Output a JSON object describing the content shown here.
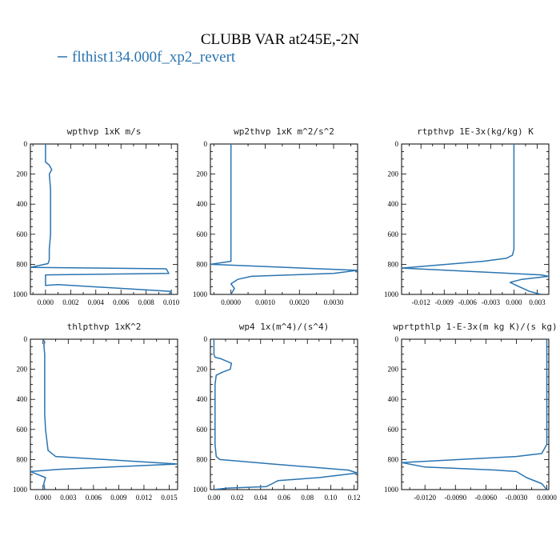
{
  "figure": {
    "title": "CLUBB VAR at245E,-2N",
    "legend_label": "flthist134.000f_xp2_revert",
    "line_color": "#2a74b0"
  },
  "chart_data": [
    {
      "type": "line",
      "title": "wpthvp   1xK m/s",
      "xlim": [
        -0.0012,
        0.0105
      ],
      "ylim": [
        0,
        1000
      ],
      "y_inverted": true,
      "xticks": [
        0.0,
        0.002,
        0.004,
        0.006,
        0.008,
        0.01
      ],
      "xtick_labels": [
        "0.000",
        "0.002",
        "0.004",
        "0.006",
        "0.008",
        "0.010"
      ],
      "yticks": [
        0,
        200,
        400,
        600,
        800,
        1000
      ],
      "ytick_labels": [
        "0",
        "200",
        "400",
        "600",
        "800",
        "1000"
      ],
      "series": [
        {
          "x": [
            0.0,
            0.0,
            0.0003,
            0.0005,
            0.0003,
            0.0004,
            0.0004,
            0.0004,
            0.0004,
            0.0003,
            0.0003,
            0.0002,
            -0.0012,
            0.0096,
            0.0098,
            0.0,
            0.0,
            0.001,
            0.01,
            0.0098
          ],
          "y": [
            0,
            120,
            140,
            170,
            200,
            300,
            400,
            500,
            600,
            700,
            770,
            795,
            820,
            830,
            860,
            870,
            940,
            935,
            980,
            1000
          ]
        }
      ]
    },
    {
      "type": "line",
      "title": "wp2thvp   1xK m^2/s^2",
      "xlim": [
        -0.0006,
        0.0037
      ],
      "ylim": [
        0,
        1000
      ],
      "y_inverted": true,
      "xticks": [
        0.0,
        0.001,
        0.002,
        0.003
      ],
      "xtick_labels": [
        "0.0000",
        "0.0010",
        "0.0020",
        "0.0030"
      ],
      "yticks": [
        0,
        200,
        400,
        600,
        800,
        1000
      ],
      "ytick_labels": [
        "0",
        "200",
        "400",
        "600",
        "800",
        "1000"
      ],
      "series": [
        {
          "x": [
            0.0,
            0.0,
            0.0,
            0.0,
            0.0,
            0.0,
            0.0,
            0.0,
            0.0,
            0.0,
            -0.0006,
            0.0037,
            0.003,
            0.0006,
            0.0002,
            0.0,
            0.0001,
            0.0
          ],
          "y": [
            0,
            100,
            150,
            200,
            300,
            400,
            500,
            600,
            700,
            780,
            800,
            840,
            860,
            880,
            900,
            930,
            960,
            1000
          ]
        }
      ]
    },
    {
      "type": "line",
      "title": "rtpthvp   1E-3x(kg/kg) K",
      "xlim": [
        -0.0145,
        0.0045
      ],
      "ylim": [
        0,
        1000
      ],
      "y_inverted": true,
      "xticks": [
        -0.012,
        -0.009,
        -0.006,
        -0.003,
        0.0,
        0.003
      ],
      "xtick_labels": [
        "-0.012",
        "-0.009",
        "-0.006",
        "-0.003",
        "0.000",
        "0.003"
      ],
      "yticks": [
        0,
        200,
        400,
        600,
        800,
        1000
      ],
      "ytick_labels": [
        "0",
        "200",
        "400",
        "600",
        "800",
        "1000"
      ],
      "series": [
        {
          "x": [
            0.0,
            0.0,
            0.0,
            0.0,
            0.0,
            0.0,
            0.0,
            0.0,
            -0.0002,
            -0.001,
            -0.004,
            -0.0145,
            0.0035,
            0.0045,
            0.001,
            -0.0005,
            0.0003,
            0.002,
            0.0035
          ],
          "y": [
            0,
            100,
            200,
            300,
            400,
            500,
            600,
            700,
            740,
            760,
            780,
            825,
            870,
            880,
            900,
            920,
            940,
            980,
            1000
          ]
        }
      ]
    },
    {
      "type": "line",
      "title": "thlpthvp   1xK^2",
      "xlim": [
        -0.0015,
        0.016
      ],
      "ylim": [
        0,
        1000
      ],
      "y_inverted": true,
      "xticks": [
        0.0,
        0.003,
        0.006,
        0.009,
        0.012,
        0.015
      ],
      "xtick_labels": [
        "0.000",
        "0.003",
        "0.006",
        "0.009",
        "0.012",
        "0.015"
      ],
      "yticks": [
        0,
        200,
        400,
        600,
        800,
        1000
      ],
      "ytick_labels": [
        "0",
        "200",
        "400",
        "600",
        "800",
        "1000"
      ],
      "series": [
        {
          "x": [
            0.0,
            0.0002,
            0.0001,
            0.0002,
            0.0002,
            0.0002,
            0.0002,
            0.0002,
            0.0003,
            0.0006,
            0.0015,
            0.016,
            0.002,
            -0.0015,
            0.0003,
            0.0001,
            0.0002
          ],
          "y": [
            0,
            20,
            40,
            100,
            200,
            300,
            400,
            500,
            600,
            740,
            780,
            830,
            865,
            880,
            920,
            960,
            1000
          ]
        }
      ]
    },
    {
      "type": "line",
      "title": "wp4   1x(m^4)/(s^4)",
      "xlim": [
        -0.003,
        0.123
      ],
      "ylim": [
        0,
        1000
      ],
      "y_inverted": true,
      "xticks": [
        0.0,
        0.02,
        0.04,
        0.06,
        0.08,
        0.1,
        0.12
      ],
      "xtick_labels": [
        "0.00",
        "0.02",
        "0.04",
        "0.06",
        "0.08",
        "0.10",
        "0.12"
      ],
      "yticks": [
        0,
        200,
        400,
        600,
        800,
        1000
      ],
      "ytick_labels": [
        "0",
        "200",
        "400",
        "600",
        "800",
        "1000"
      ],
      "series": [
        {
          "x": [
            0.0,
            0.0,
            0.001,
            0.006,
            0.015,
            0.014,
            0.007,
            0.002,
            0.001,
            0.001,
            0.001,
            0.001,
            0.001,
            0.002,
            0.005,
            0.05,
            0.115,
            0.123,
            0.09,
            0.055,
            0.05,
            0.045,
            0.012,
            0.0
          ],
          "y": [
            0,
            100,
            120,
            130,
            160,
            200,
            220,
            240,
            300,
            400,
            500,
            600,
            700,
            780,
            800,
            830,
            870,
            890,
            920,
            940,
            960,
            980,
            990,
            1000
          ]
        }
      ]
    },
    {
      "type": "line",
      "title": "wprtpthlp   1-E-3x(m kg K)/(s kg)",
      "xlim": [
        -0.0143,
        0.0002
      ],
      "ylim": [
        0,
        1000
      ],
      "y_inverted": true,
      "xticks": [
        -0.012,
        -0.009,
        -0.006,
        -0.003,
        0.0
      ],
      "xtick_labels": [
        "-0.0120",
        "-0.0090",
        "-0.0060",
        "-0.0030",
        "0.0000"
      ],
      "yticks": [
        0,
        200,
        400,
        600,
        800,
        1000
      ],
      "ytick_labels": [
        "0",
        "200",
        "400",
        "600",
        "800",
        "1000"
      ],
      "series": [
        {
          "x": [
            0.0,
            0.0,
            0.0,
            0.0,
            0.0,
            0.0,
            0.0,
            0.0,
            -0.0005,
            -0.003,
            -0.0143,
            -0.012,
            -0.005,
            -0.003,
            -0.002,
            -0.0005,
            0.0
          ],
          "y": [
            0,
            100,
            200,
            300,
            400,
            500,
            600,
            700,
            760,
            780,
            820,
            850,
            870,
            880,
            920,
            960,
            1000
          ]
        }
      ]
    }
  ]
}
